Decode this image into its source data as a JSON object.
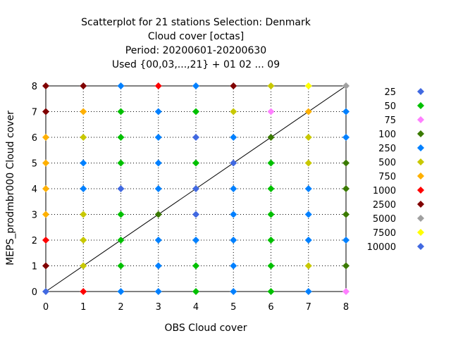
{
  "chart_data": {
    "type": "scatter",
    "title": [
      "Scatterplot for   21 stations Selection: Denmark",
      "Cloud cover [octas]",
      "Period: 20200601-20200630",
      "Used {00,03,...,21} + 01 02 ... 09"
    ],
    "xlabel": "OBS Cloud cover",
    "ylabel": "MEPS_prodmbr000 Cloud cover",
    "xlim": [
      0,
      8
    ],
    "ylim": [
      0,
      8
    ],
    "xticks": [
      0,
      1,
      2,
      3,
      4,
      5,
      6,
      7,
      8
    ],
    "yticks": [
      0,
      1,
      2,
      3,
      4,
      5,
      6,
      7,
      8
    ],
    "grid": true,
    "diagonal": true,
    "legend_position": "right",
    "legend": [
      {
        "label": "25",
        "color": "#4169e1"
      },
      {
        "label": "50",
        "color": "#00c000"
      },
      {
        "label": "75",
        "color": "#ff80ff"
      },
      {
        "label": "100",
        "color": "#3a7a00"
      },
      {
        "label": "250",
        "color": "#0080ff"
      },
      {
        "label": "500",
        "color": "#c8c800"
      },
      {
        "label": "750",
        "color": "#ffb000"
      },
      {
        "label": "1000",
        "color": "#ff0000"
      },
      {
        "label": "2500",
        "color": "#800000"
      },
      {
        "label": "5000",
        "color": "#a0a0a0"
      },
      {
        "label": "7500",
        "color": "#ffff00"
      },
      {
        "label": "10000",
        "color": "#4169e1"
      }
    ],
    "points": [
      {
        "x": 0,
        "y": 8,
        "c": "#800000"
      },
      {
        "x": 1,
        "y": 8,
        "c": "#800000"
      },
      {
        "x": 2,
        "y": 8,
        "c": "#0080ff"
      },
      {
        "x": 3,
        "y": 8,
        "c": "#ff0000"
      },
      {
        "x": 4,
        "y": 8,
        "c": "#0080ff"
      },
      {
        "x": 5,
        "y": 8,
        "c": "#800000"
      },
      {
        "x": 6,
        "y": 8,
        "c": "#c8c800"
      },
      {
        "x": 7,
        "y": 8,
        "c": "#ffff00"
      },
      {
        "x": 8,
        "y": 8,
        "c": "#a0a0a0"
      },
      {
        "x": 0,
        "y": 7,
        "c": "#800000"
      },
      {
        "x": 1,
        "y": 7,
        "c": "#ffb000"
      },
      {
        "x": 2,
        "y": 7,
        "c": "#00c000"
      },
      {
        "x": 3,
        "y": 7,
        "c": "#0080ff"
      },
      {
        "x": 4,
        "y": 7,
        "c": "#00c000"
      },
      {
        "x": 5,
        "y": 7,
        "c": "#c8c800"
      },
      {
        "x": 6,
        "y": 7,
        "c": "#ff80ff"
      },
      {
        "x": 7,
        "y": 7,
        "c": "#ffb000"
      },
      {
        "x": 8,
        "y": 7,
        "c": "#0080ff"
      },
      {
        "x": 0,
        "y": 6,
        "c": "#ffb000"
      },
      {
        "x": 1,
        "y": 6,
        "c": "#c8c800"
      },
      {
        "x": 2,
        "y": 6,
        "c": "#00c000"
      },
      {
        "x": 3,
        "y": 6,
        "c": "#0080ff"
      },
      {
        "x": 4,
        "y": 6,
        "c": "#4169e1"
      },
      {
        "x": 5,
        "y": 6,
        "c": "#0080ff"
      },
      {
        "x": 6,
        "y": 6,
        "c": "#3a7a00"
      },
      {
        "x": 7,
        "y": 6,
        "c": "#c8c800"
      },
      {
        "x": 8,
        "y": 6,
        "c": "#0080ff"
      },
      {
        "x": 0,
        "y": 5,
        "c": "#ffb000"
      },
      {
        "x": 1,
        "y": 5,
        "c": "#0080ff"
      },
      {
        "x": 2,
        "y": 5,
        "c": "#00c000"
      },
      {
        "x": 3,
        "y": 5,
        "c": "#0080ff"
      },
      {
        "x": 4,
        "y": 5,
        "c": "#00c000"
      },
      {
        "x": 5,
        "y": 5,
        "c": "#4169e1"
      },
      {
        "x": 6,
        "y": 5,
        "c": "#00c000"
      },
      {
        "x": 7,
        "y": 5,
        "c": "#c8c800"
      },
      {
        "x": 8,
        "y": 5,
        "c": "#3a7a00"
      },
      {
        "x": 0,
        "y": 4,
        "c": "#ffb000"
      },
      {
        "x": 1,
        "y": 4,
        "c": "#0080ff"
      },
      {
        "x": 2,
        "y": 4,
        "c": "#4169e1"
      },
      {
        "x": 3,
        "y": 4,
        "c": "#0080ff"
      },
      {
        "x": 4,
        "y": 4,
        "c": "#4169e1"
      },
      {
        "x": 5,
        "y": 4,
        "c": "#0080ff"
      },
      {
        "x": 6,
        "y": 4,
        "c": "#00c000"
      },
      {
        "x": 7,
        "y": 4,
        "c": "#0080ff"
      },
      {
        "x": 8,
        "y": 4,
        "c": "#3a7a00"
      },
      {
        "x": 0,
        "y": 3,
        "c": "#ffb000"
      },
      {
        "x": 1,
        "y": 3,
        "c": "#c8c800"
      },
      {
        "x": 2,
        "y": 3,
        "c": "#00c000"
      },
      {
        "x": 3,
        "y": 3,
        "c": "#3a7a00"
      },
      {
        "x": 4,
        "y": 3,
        "c": "#4169e1"
      },
      {
        "x": 5,
        "y": 3,
        "c": "#0080ff"
      },
      {
        "x": 6,
        "y": 3,
        "c": "#00c000"
      },
      {
        "x": 7,
        "y": 3,
        "c": "#0080ff"
      },
      {
        "x": 8,
        "y": 3,
        "c": "#3a7a00"
      },
      {
        "x": 0,
        "y": 2,
        "c": "#ff0000"
      },
      {
        "x": 1,
        "y": 2,
        "c": "#c8c800"
      },
      {
        "x": 2,
        "y": 2,
        "c": "#00c000"
      },
      {
        "x": 3,
        "y": 2,
        "c": "#0080ff"
      },
      {
        "x": 4,
        "y": 2,
        "c": "#0080ff"
      },
      {
        "x": 5,
        "y": 2,
        "c": "#0080ff"
      },
      {
        "x": 6,
        "y": 2,
        "c": "#00c000"
      },
      {
        "x": 7,
        "y": 2,
        "c": "#0080ff"
      },
      {
        "x": 8,
        "y": 2,
        "c": "#0080ff"
      },
      {
        "x": 0,
        "y": 1,
        "c": "#800000"
      },
      {
        "x": 1,
        "y": 1,
        "c": "#c8c800"
      },
      {
        "x": 2,
        "y": 1,
        "c": "#00c000"
      },
      {
        "x": 3,
        "y": 1,
        "c": "#0080ff"
      },
      {
        "x": 4,
        "y": 1,
        "c": "#00c000"
      },
      {
        "x": 5,
        "y": 1,
        "c": "#0080ff"
      },
      {
        "x": 6,
        "y": 1,
        "c": "#00c000"
      },
      {
        "x": 7,
        "y": 1,
        "c": "#c8c800"
      },
      {
        "x": 8,
        "y": 1,
        "c": "#3a7a00"
      },
      {
        "x": 0,
        "y": 0,
        "c": "#4169e1"
      },
      {
        "x": 1,
        "y": 0,
        "c": "#ff0000"
      },
      {
        "x": 2,
        "y": 0,
        "c": "#0080ff"
      },
      {
        "x": 3,
        "y": 0,
        "c": "#0080ff"
      },
      {
        "x": 4,
        "y": 0,
        "c": "#00c000"
      },
      {
        "x": 5,
        "y": 0,
        "c": "#0080ff"
      },
      {
        "x": 6,
        "y": 0,
        "c": "#00c000"
      },
      {
        "x": 7,
        "y": 0,
        "c": "#0080ff"
      },
      {
        "x": 8,
        "y": 0,
        "c": "#ff80ff"
      }
    ]
  }
}
